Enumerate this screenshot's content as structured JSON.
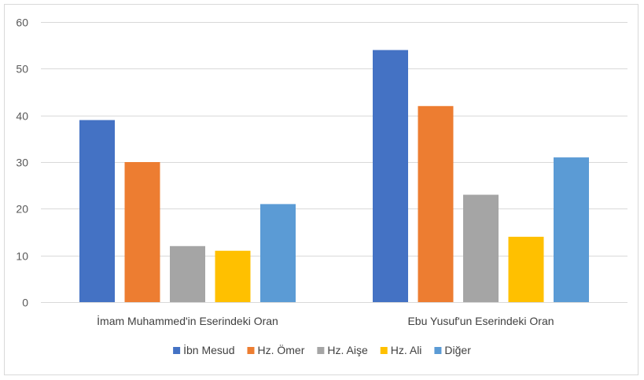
{
  "chart_data": {
    "type": "bar",
    "categories": [
      "İmam Muhammed'in Eserindeki Oran",
      "Ebu Yusuf'un Eserindeki Oran"
    ],
    "series": [
      {
        "name": "İbn Mesud",
        "values": [
          39,
          54
        ],
        "color": "#4472c4"
      },
      {
        "name": "Hz. Ömer",
        "values": [
          30,
          42
        ],
        "color": "#ed7d31"
      },
      {
        "name": "Hz. Aişe",
        "values": [
          12,
          23
        ],
        "color": "#a5a5a5"
      },
      {
        "name": "Hz. Ali",
        "values": [
          11,
          14
        ],
        "color": "#ffc000"
      },
      {
        "name": "Diğer",
        "values": [
          21,
          31
        ],
        "color": "#5b9bd5"
      }
    ],
    "ylim": [
      0,
      60
    ],
    "yticks": [
      0,
      10,
      20,
      30,
      40,
      50,
      60
    ],
    "grid": true,
    "legend": "bottom",
    "title": "",
    "xlabel": "",
    "ylabel": ""
  }
}
